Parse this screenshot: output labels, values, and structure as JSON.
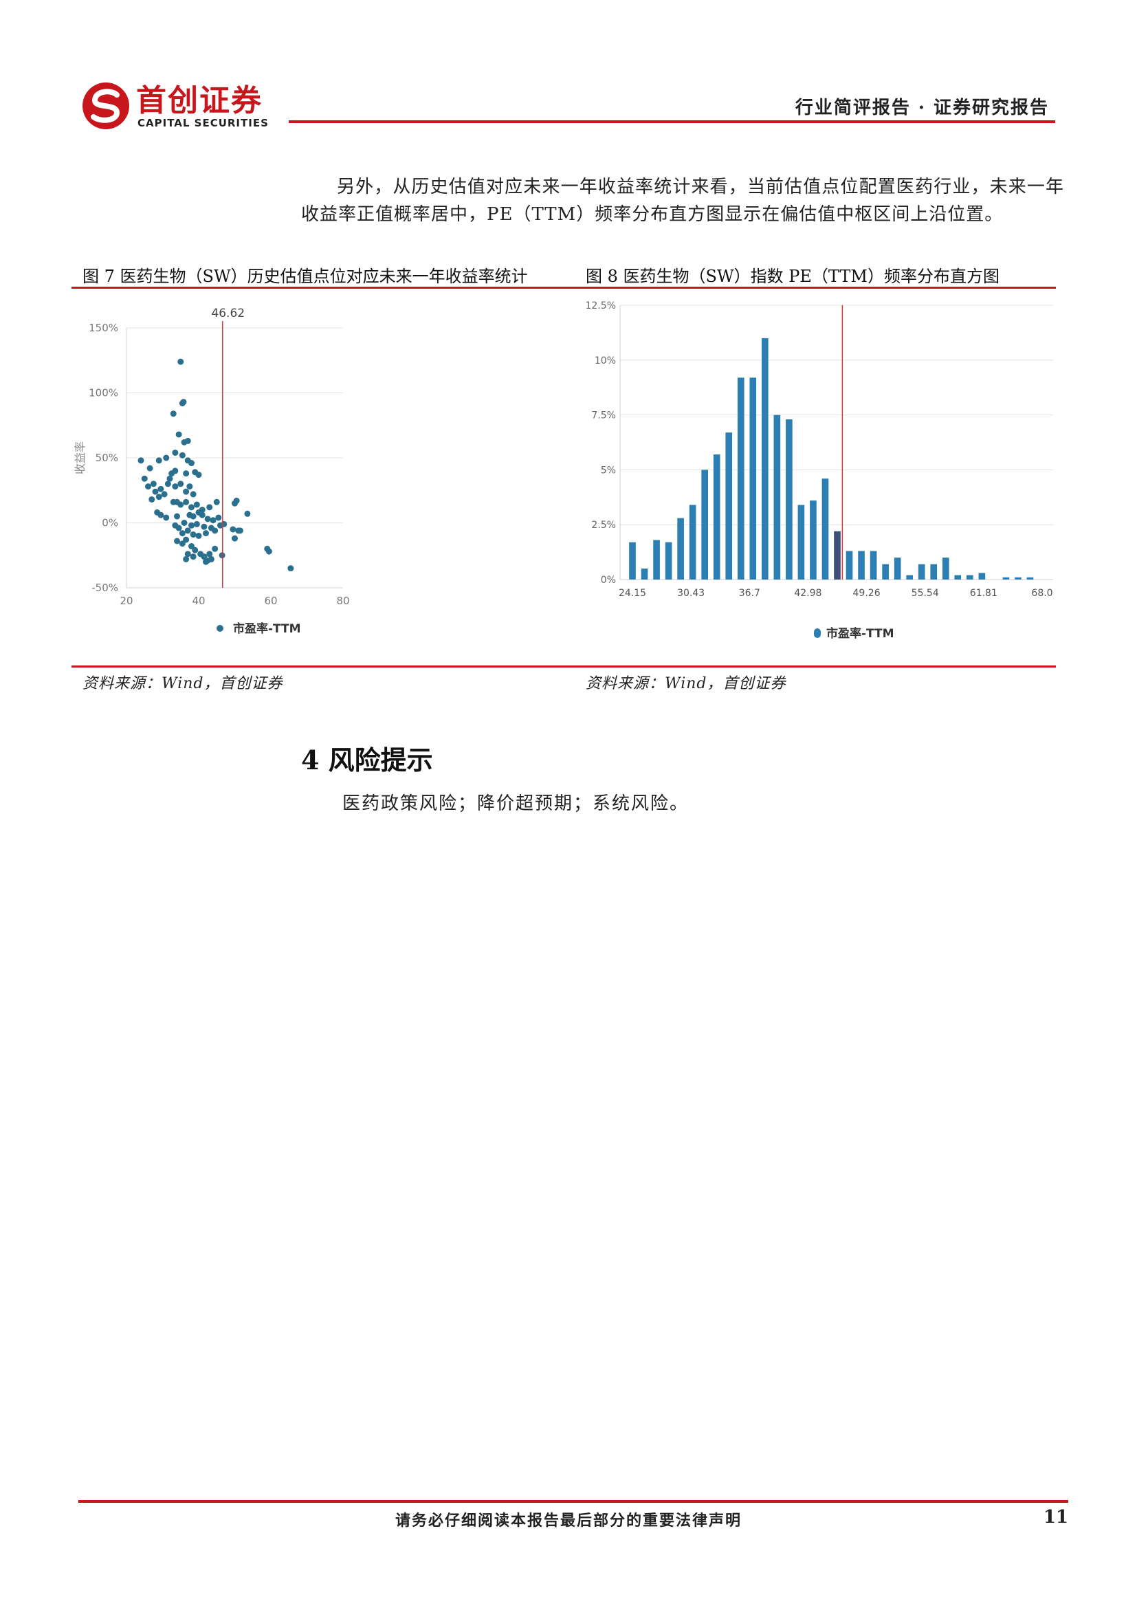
{
  "header": {
    "logo_cn": "首创证券",
    "logo_en": "CAPITAL SECURITIES",
    "title": "行业简评报告 · 证券研究报告",
    "brand_color": "#c8161d"
  },
  "intro_paragraph": "另外，从历史估值对应未来一年收益率统计来看，当前估值点位配置医药行业，未来一年收益率正值概率居中，PE（TTM）频率分布直方图显示在偏估值中枢区间上沿位置。",
  "figures": {
    "fig7": {
      "title": "图 7 医药生物（SW）历史估值点位对应未来一年收益率统计",
      "source": "资料来源：Wind，首创证券"
    },
    "fig8": {
      "title": "图 8 医药生物（SW）指数 PE（TTM）频率分布直方图",
      "source": "资料来源：Wind，首创证券"
    }
  },
  "chart_data": [
    {
      "type": "scatter",
      "title": "",
      "xlabel": "",
      "ylabel": "收益率",
      "xlim": [
        20,
        80
      ],
      "ylim": [
        -0.5,
        1.5
      ],
      "x_ticks": [
        "20",
        "40",
        "60",
        "80"
      ],
      "y_ticks": [
        "-50%",
        "0%",
        "50%",
        "100%",
        "150%"
      ],
      "vline": {
        "x": 46.62,
        "label": "46.62",
        "color": "#d23a3a"
      },
      "legend": "bottom-center",
      "grid": true,
      "series": [
        {
          "name": "市盈率-TTM",
          "color": "#2a6f8e",
          "points": [
            [
              35.0,
              1.24
            ],
            [
              35.8,
              0.93
            ],
            [
              35.5,
              0.92
            ],
            [
              33.0,
              0.84
            ],
            [
              34.5,
              0.68
            ],
            [
              36.0,
              0.62
            ],
            [
              37.0,
              0.63
            ],
            [
              33.5,
              0.54
            ],
            [
              35.5,
              0.52
            ],
            [
              37.0,
              0.48
            ],
            [
              38.0,
              0.46
            ],
            [
              33.5,
              0.4
            ],
            [
              32.5,
              0.38
            ],
            [
              36.5,
              0.38
            ],
            [
              39.0,
              0.39
            ],
            [
              40.0,
              0.37
            ],
            [
              24.0,
              0.48
            ],
            [
              26.5,
              0.42
            ],
            [
              29.0,
              0.48
            ],
            [
              31.0,
              0.5
            ],
            [
              25.0,
              0.34
            ],
            [
              26.0,
              0.28
            ],
            [
              27.5,
              0.3
            ],
            [
              28.0,
              0.24
            ],
            [
              29.5,
              0.26
            ],
            [
              31.5,
              0.3
            ],
            [
              32.0,
              0.34
            ],
            [
              33.5,
              0.28
            ],
            [
              35.0,
              0.3
            ],
            [
              36.5,
              0.24
            ],
            [
              37.5,
              0.28
            ],
            [
              38.5,
              0.22
            ],
            [
              27.0,
              0.18
            ],
            [
              29.0,
              0.2
            ],
            [
              30.5,
              0.22
            ],
            [
              33.0,
              0.16
            ],
            [
              34.0,
              0.16
            ],
            [
              35.0,
              0.14
            ],
            [
              36.5,
              0.16
            ],
            [
              38.0,
              0.12
            ],
            [
              39.5,
              0.14
            ],
            [
              41.0,
              0.1
            ],
            [
              43.0,
              0.12
            ],
            [
              45.0,
              0.16
            ],
            [
              50.0,
              0.15
            ],
            [
              50.5,
              0.17
            ],
            [
              53.5,
              0.07
            ],
            [
              28.5,
              0.08
            ],
            [
              29.5,
              0.06
            ],
            [
              31.0,
              0.04
            ],
            [
              34.0,
              0.05
            ],
            [
              37.5,
              0.06
            ],
            [
              38.5,
              0.05
            ],
            [
              40.0,
              0.08
            ],
            [
              41.0,
              0.06
            ],
            [
              42.5,
              0.03
            ],
            [
              44.0,
              0.02
            ],
            [
              45.5,
              0.04
            ],
            [
              36.0,
              0.0
            ],
            [
              38.0,
              -0.02
            ],
            [
              39.5,
              -0.01
            ],
            [
              41.5,
              -0.03
            ],
            [
              43.5,
              -0.04
            ],
            [
              46.0,
              -0.02
            ],
            [
              47.0,
              -0.01
            ],
            [
              49.5,
              -0.05
            ],
            [
              51.5,
              -0.06
            ],
            [
              33.5,
              -0.02
            ],
            [
              34.5,
              -0.04
            ],
            [
              35.5,
              -0.08
            ],
            [
              37.0,
              -0.06
            ],
            [
              38.5,
              -0.09
            ],
            [
              40.0,
              -0.1
            ],
            [
              42.0,
              -0.08
            ],
            [
              44.5,
              -0.06
            ],
            [
              34.0,
              -0.14
            ],
            [
              35.5,
              -0.16
            ],
            [
              36.5,
              -0.13
            ],
            [
              38.0,
              -0.18
            ],
            [
              39.0,
              -0.21
            ],
            [
              40.5,
              -0.24
            ],
            [
              41.5,
              -0.26
            ],
            [
              42.5,
              -0.29
            ],
            [
              43.0,
              -0.24
            ],
            [
              44.5,
              -0.2
            ],
            [
              46.5,
              -0.25
            ],
            [
              36.5,
              -0.28
            ],
            [
              37.0,
              -0.24
            ],
            [
              38.5,
              -0.26
            ],
            [
              42.0,
              -0.3
            ],
            [
              43.5,
              -0.28
            ],
            [
              50.0,
              -0.12
            ],
            [
              51.0,
              -0.06
            ],
            [
              59.0,
              -0.2
            ],
            [
              59.5,
              -0.22
            ],
            [
              65.5,
              -0.35
            ]
          ]
        }
      ]
    },
    {
      "type": "bar",
      "title": "",
      "xlabel": "",
      "ylabel": "",
      "ylim": [
        0,
        0.125
      ],
      "y_ticks": [
        "0%",
        "2.5%",
        "5%",
        "7.5%",
        "10%",
        "12.5%"
      ],
      "x_tick_labels": [
        "24.15",
        "30.43",
        "36.7",
        "42.98",
        "49.26",
        "55.54",
        "61.81",
        "68.0"
      ],
      "x_range": [
        24.15,
        68.0
      ],
      "vline": {
        "x": 46.62,
        "color": "#d23a3a"
      },
      "current_bin_index": 17,
      "legend": "bottom-center",
      "grid": true,
      "series": [
        {
          "name": "市盈率-TTM",
          "color": "#2b7fb3",
          "highlight_color": "#3d4f7a",
          "values": [
            0.017,
            0.005,
            0.018,
            0.017,
            0.028,
            0.034,
            0.05,
            0.057,
            0.067,
            0.092,
            0.092,
            0.11,
            0.075,
            0.073,
            0.034,
            0.036,
            0.046,
            0.022,
            0.013,
            0.013,
            0.013,
            0.007,
            0.01,
            0.002,
            0.007,
            0.007,
            0.01,
            0.002,
            0.002,
            0.003,
            0.0,
            0.001,
            0.001,
            0.001,
            0.0
          ]
        }
      ]
    }
  ],
  "section": {
    "heading": "4 风险提示",
    "text": "医药政策风险；降价超预期；系统风险。"
  },
  "footer": {
    "notice": "请务必仔细阅读本报告最后部分的重要法律声明",
    "page_number": "11"
  }
}
